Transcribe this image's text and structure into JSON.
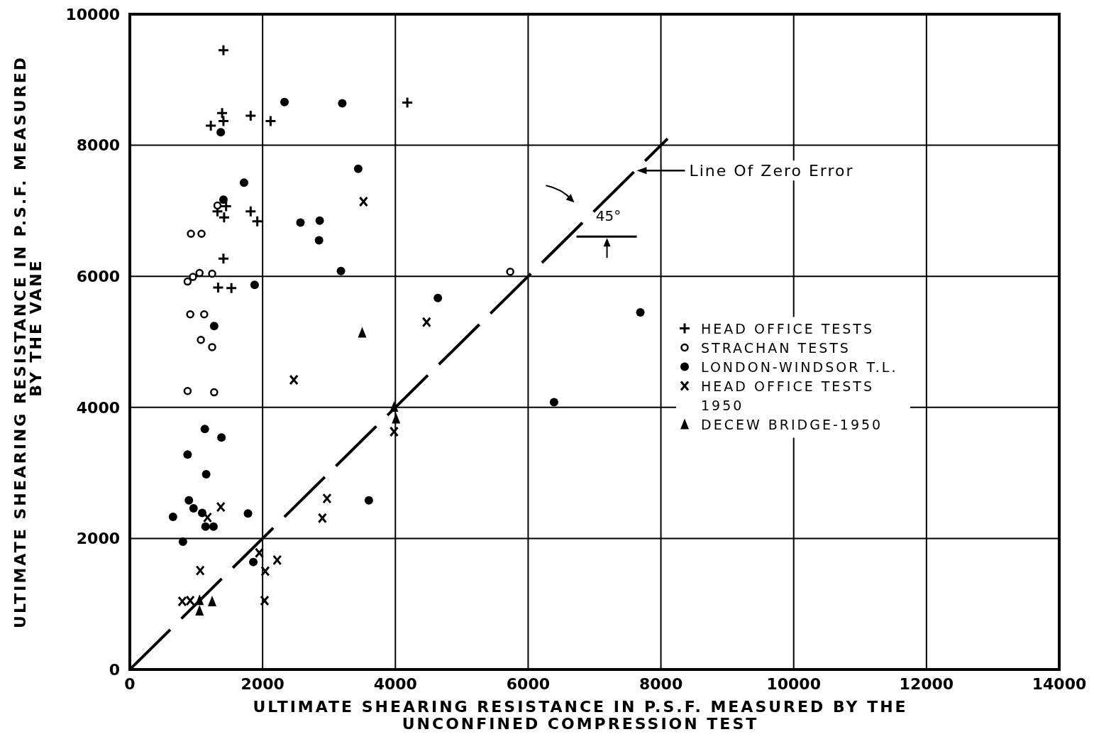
{
  "chart_data": {
    "type": "scatter",
    "xlabel": "ULTIMATE SHEARING RESISTANCE IN P.S.F. MEASURED BY THE\nUNCONFINED COMPRESSION TEST",
    "ylabel": "ULTIMATE SHEARING RESISTANCE IN P.S.F. MEASURED\nBY THE VANE",
    "xlim": [
      0,
      14000
    ],
    "xticks": [
      0,
      2000,
      4000,
      6000,
      8000,
      10000,
      12000,
      14000
    ],
    "ylim": [
      0,
      10000
    ],
    "yticks": [
      0,
      2000,
      4000,
      6000,
      8000,
      10000
    ],
    "grid": true,
    "legend": "right",
    "annotations": [
      "45°"
    ],
    "series": [
      {
        "name": "HEAD OFFICE TESTS",
        "color": "#000000",
        "marker": "cross",
        "x": [
          1410,
          1390,
          1410,
          1220,
          1820,
          2120,
          4180,
          1450,
          1320,
          1420,
          1820,
          1920,
          1410,
          1330,
          1530
        ],
        "values": [
          9450,
          8490,
          8370,
          8300,
          8450,
          8370,
          8650,
          7070,
          6990,
          6900,
          6990,
          6840,
          6270,
          5830,
          5820
        ]
      },
      {
        "name": "STRACHAN TESTS",
        "color": "#000000",
        "marker": "circle_open",
        "x": [
          1320,
          920,
          1080,
          1050,
          1240,
          870,
          950,
          910,
          1120,
          1070,
          1240,
          870,
          1270,
          5730
        ],
        "values": [
          7080,
          6650,
          6650,
          6050,
          6040,
          5920,
          5990,
          5420,
          5420,
          5030,
          4920,
          4250,
          4230,
          6070
        ]
      },
      {
        "name": "LONDON-WINDSOR T.L.",
        "color": "#000000",
        "marker": "circle",
        "x": [
          1370,
          2330,
          3200,
          3440,
          1720,
          1410,
          2570,
          2860,
          2850,
          3180,
          1880,
          4640,
          1270,
          1130,
          1380,
          870,
          1150,
          890,
          960,
          1090,
          650,
          1140,
          1260,
          1780,
          3600,
          800,
          1860,
          7690,
          6390
        ],
        "values": [
          8200,
          8660,
          8640,
          7640,
          7430,
          7170,
          6820,
          6850,
          6550,
          6080,
          5870,
          5670,
          5240,
          3670,
          3540,
          3280,
          2980,
          2580,
          2460,
          2390,
          2330,
          2180,
          2180,
          2380,
          2580,
          1950,
          1640,
          5450,
          4080
        ]
      },
      {
        "name": "HEAD OFFICE TESTS 1950",
        "color": "#000000",
        "marker": "x",
        "x": [
          3520,
          4470,
          2470,
          3980,
          2970,
          2900,
          1370,
          1170,
          1950,
          2220,
          2040,
          1060,
          2030,
          790,
          910
        ],
        "values": [
          7140,
          5300,
          4420,
          3630,
          2610,
          2310,
          2480,
          2320,
          1780,
          1670,
          1500,
          1510,
          1050,
          1040,
          1050
        ]
      },
      {
        "name": "DECEW BRIDGE-1950",
        "color": "#000000",
        "marker": "triangle",
        "x": [
          3500,
          3980,
          4010,
          1050,
          1050,
          1240
        ],
        "values": [
          5140,
          4010,
          3830,
          1060,
          900,
          1040
        ]
      },
      {
        "name": "Line Of Zero Error",
        "type": "line",
        "color": "#000000",
        "line_style": "dashed",
        "x": [
          0,
          8100
        ],
        "values": [
          0,
          8100
        ]
      }
    ]
  }
}
